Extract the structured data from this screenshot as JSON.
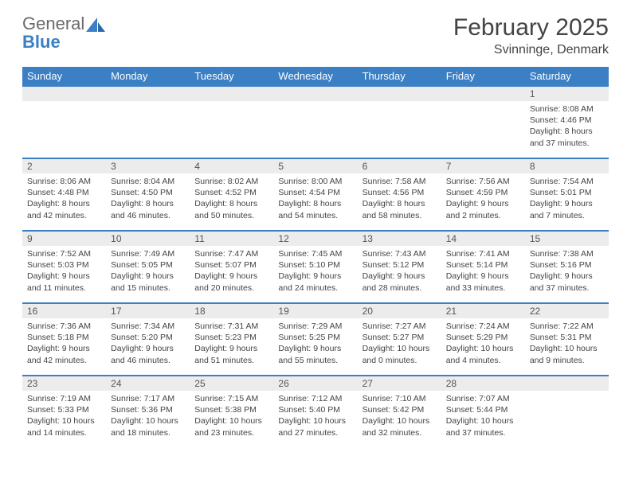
{
  "logo": {
    "word1": "General",
    "word2": "Blue"
  },
  "title": "February 2025",
  "location": "Svinninge, Denmark",
  "colors": {
    "accent": "#3b7fc4",
    "header_text": "#ffffff",
    "daynum_bg": "#ececec",
    "body_text": "#444444",
    "logo_gray": "#6b6b6b"
  },
  "day_headers": [
    "Sunday",
    "Monday",
    "Tuesday",
    "Wednesday",
    "Thursday",
    "Friday",
    "Saturday"
  ],
  "weeks": [
    [
      {
        "n": "",
        "sr": "",
        "ss": "",
        "dl": ""
      },
      {
        "n": "",
        "sr": "",
        "ss": "",
        "dl": ""
      },
      {
        "n": "",
        "sr": "",
        "ss": "",
        "dl": ""
      },
      {
        "n": "",
        "sr": "",
        "ss": "",
        "dl": ""
      },
      {
        "n": "",
        "sr": "",
        "ss": "",
        "dl": ""
      },
      {
        "n": "",
        "sr": "",
        "ss": "",
        "dl": ""
      },
      {
        "n": "1",
        "sr": "Sunrise: 8:08 AM",
        "ss": "Sunset: 4:46 PM",
        "dl": "Daylight: 8 hours and 37 minutes."
      }
    ],
    [
      {
        "n": "2",
        "sr": "Sunrise: 8:06 AM",
        "ss": "Sunset: 4:48 PM",
        "dl": "Daylight: 8 hours and 42 minutes."
      },
      {
        "n": "3",
        "sr": "Sunrise: 8:04 AM",
        "ss": "Sunset: 4:50 PM",
        "dl": "Daylight: 8 hours and 46 minutes."
      },
      {
        "n": "4",
        "sr": "Sunrise: 8:02 AM",
        "ss": "Sunset: 4:52 PM",
        "dl": "Daylight: 8 hours and 50 minutes."
      },
      {
        "n": "5",
        "sr": "Sunrise: 8:00 AM",
        "ss": "Sunset: 4:54 PM",
        "dl": "Daylight: 8 hours and 54 minutes."
      },
      {
        "n": "6",
        "sr": "Sunrise: 7:58 AM",
        "ss": "Sunset: 4:56 PM",
        "dl": "Daylight: 8 hours and 58 minutes."
      },
      {
        "n": "7",
        "sr": "Sunrise: 7:56 AM",
        "ss": "Sunset: 4:59 PM",
        "dl": "Daylight: 9 hours and 2 minutes."
      },
      {
        "n": "8",
        "sr": "Sunrise: 7:54 AM",
        "ss": "Sunset: 5:01 PM",
        "dl": "Daylight: 9 hours and 7 minutes."
      }
    ],
    [
      {
        "n": "9",
        "sr": "Sunrise: 7:52 AM",
        "ss": "Sunset: 5:03 PM",
        "dl": "Daylight: 9 hours and 11 minutes."
      },
      {
        "n": "10",
        "sr": "Sunrise: 7:49 AM",
        "ss": "Sunset: 5:05 PM",
        "dl": "Daylight: 9 hours and 15 minutes."
      },
      {
        "n": "11",
        "sr": "Sunrise: 7:47 AM",
        "ss": "Sunset: 5:07 PM",
        "dl": "Daylight: 9 hours and 20 minutes."
      },
      {
        "n": "12",
        "sr": "Sunrise: 7:45 AM",
        "ss": "Sunset: 5:10 PM",
        "dl": "Daylight: 9 hours and 24 minutes."
      },
      {
        "n": "13",
        "sr": "Sunrise: 7:43 AM",
        "ss": "Sunset: 5:12 PM",
        "dl": "Daylight: 9 hours and 28 minutes."
      },
      {
        "n": "14",
        "sr": "Sunrise: 7:41 AM",
        "ss": "Sunset: 5:14 PM",
        "dl": "Daylight: 9 hours and 33 minutes."
      },
      {
        "n": "15",
        "sr": "Sunrise: 7:38 AM",
        "ss": "Sunset: 5:16 PM",
        "dl": "Daylight: 9 hours and 37 minutes."
      }
    ],
    [
      {
        "n": "16",
        "sr": "Sunrise: 7:36 AM",
        "ss": "Sunset: 5:18 PM",
        "dl": "Daylight: 9 hours and 42 minutes."
      },
      {
        "n": "17",
        "sr": "Sunrise: 7:34 AM",
        "ss": "Sunset: 5:20 PM",
        "dl": "Daylight: 9 hours and 46 minutes."
      },
      {
        "n": "18",
        "sr": "Sunrise: 7:31 AM",
        "ss": "Sunset: 5:23 PM",
        "dl": "Daylight: 9 hours and 51 minutes."
      },
      {
        "n": "19",
        "sr": "Sunrise: 7:29 AM",
        "ss": "Sunset: 5:25 PM",
        "dl": "Daylight: 9 hours and 55 minutes."
      },
      {
        "n": "20",
        "sr": "Sunrise: 7:27 AM",
        "ss": "Sunset: 5:27 PM",
        "dl": "Daylight: 10 hours and 0 minutes."
      },
      {
        "n": "21",
        "sr": "Sunrise: 7:24 AM",
        "ss": "Sunset: 5:29 PM",
        "dl": "Daylight: 10 hours and 4 minutes."
      },
      {
        "n": "22",
        "sr": "Sunrise: 7:22 AM",
        "ss": "Sunset: 5:31 PM",
        "dl": "Daylight: 10 hours and 9 minutes."
      }
    ],
    [
      {
        "n": "23",
        "sr": "Sunrise: 7:19 AM",
        "ss": "Sunset: 5:33 PM",
        "dl": "Daylight: 10 hours and 14 minutes."
      },
      {
        "n": "24",
        "sr": "Sunrise: 7:17 AM",
        "ss": "Sunset: 5:36 PM",
        "dl": "Daylight: 10 hours and 18 minutes."
      },
      {
        "n": "25",
        "sr": "Sunrise: 7:15 AM",
        "ss": "Sunset: 5:38 PM",
        "dl": "Daylight: 10 hours and 23 minutes."
      },
      {
        "n": "26",
        "sr": "Sunrise: 7:12 AM",
        "ss": "Sunset: 5:40 PM",
        "dl": "Daylight: 10 hours and 27 minutes."
      },
      {
        "n": "27",
        "sr": "Sunrise: 7:10 AM",
        "ss": "Sunset: 5:42 PM",
        "dl": "Daylight: 10 hours and 32 minutes."
      },
      {
        "n": "28",
        "sr": "Sunrise: 7:07 AM",
        "ss": "Sunset: 5:44 PM",
        "dl": "Daylight: 10 hours and 37 minutes."
      },
      {
        "n": "",
        "sr": "",
        "ss": "",
        "dl": ""
      }
    ]
  ]
}
